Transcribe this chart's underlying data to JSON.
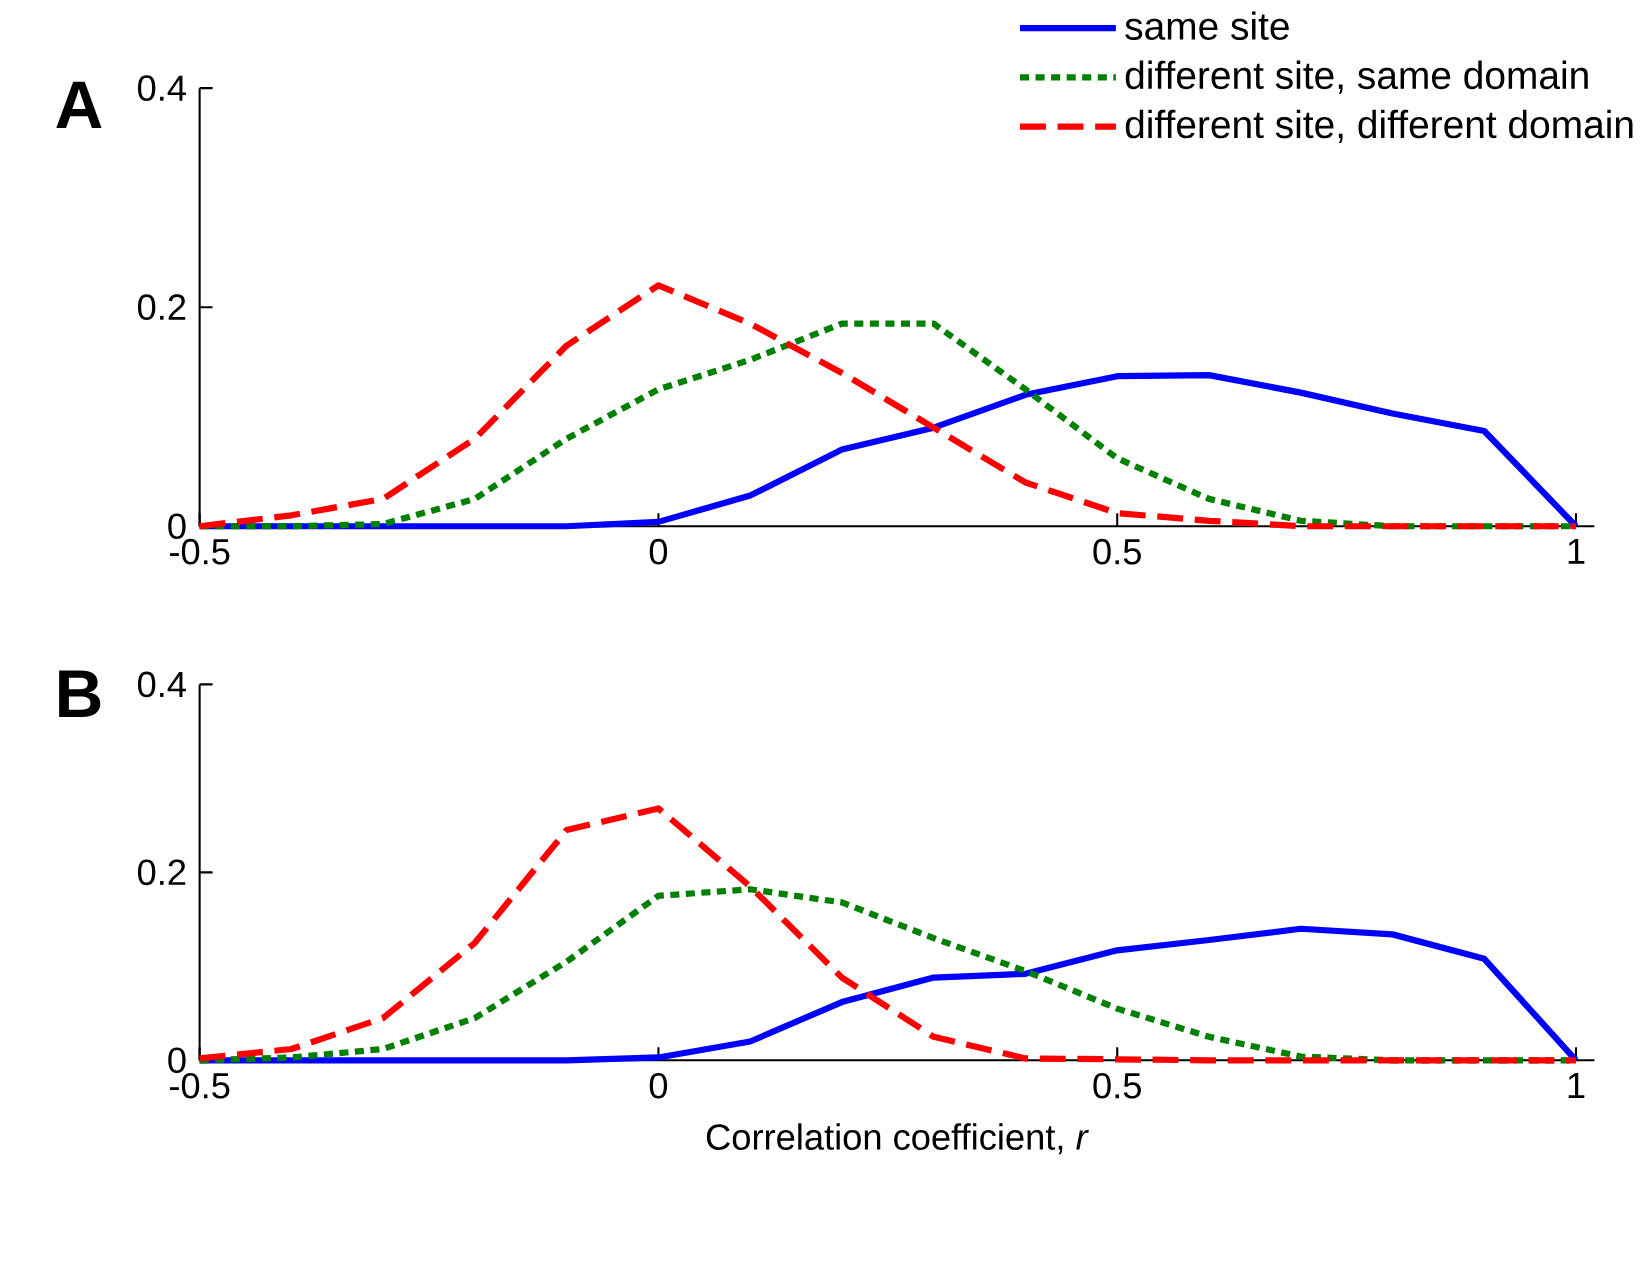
{
  "chart_data": [
    {
      "type": "line",
      "title": "A",
      "x": [
        -0.5,
        -0.4,
        -0.3,
        -0.2,
        -0.1,
        0,
        0.1,
        0.2,
        0.3,
        0.4,
        0.5,
        0.6,
        0.7,
        0.8,
        0.9,
        1.0
      ],
      "xlim": [
        -0.5,
        1.02
      ],
      "xticks": [
        -0.5,
        0,
        0.5,
        1
      ],
      "ylim": [
        0,
        0.4
      ],
      "yticks": [
        0,
        0.2,
        0.4
      ],
      "legend": "top",
      "series": [
        {
          "name": "same  site",
          "color": "#0000ff",
          "line_style": "solid",
          "values": [
            0,
            0,
            0,
            0,
            0,
            0.004,
            0.028,
            0.07,
            0.09,
            0.12,
            0.137,
            0.138,
            0.122,
            0.103,
            0.087,
            0
          ]
        },
        {
          "name": "different  site,  same  domain",
          "color": "#008000",
          "line_style": "dotted",
          "values": [
            0,
            0,
            0.002,
            0.025,
            0.08,
            0.125,
            0.152,
            0.185,
            0.185,
            0.125,
            0.062,
            0.025,
            0.005,
            0,
            0,
            0
          ]
        },
        {
          "name": "different  site,  different  domain",
          "color": "#ff0000",
          "line_style": "dashed",
          "values": [
            0,
            0.01,
            0.025,
            0.08,
            0.165,
            0.22,
            0.185,
            0.14,
            0.09,
            0.04,
            0.012,
            0.005,
            0,
            0,
            0,
            0
          ]
        }
      ]
    },
    {
      "type": "line",
      "title": "B",
      "xlabel": "Correlation  coefficient,  *r*",
      "x": [
        -0.5,
        -0.4,
        -0.3,
        -0.2,
        -0.1,
        0,
        0.1,
        0.2,
        0.3,
        0.4,
        0.5,
        0.6,
        0.7,
        0.8,
        0.9,
        1.0
      ],
      "xlim": [
        -0.5,
        1.02
      ],
      "xticks": [
        -0.5,
        0,
        0.5,
        1
      ],
      "ylim": [
        0,
        0.4
      ],
      "yticks": [
        0,
        0.2,
        0.4
      ],
      "series": [
        {
          "color": "#0000ff",
          "line_style": "solid",
          "values": [
            0,
            0,
            0,
            0,
            0,
            0.003,
            0.02,
            0.062,
            0.088,
            0.092,
            0.117,
            0.128,
            0.14,
            0.134,
            0.108,
            0
          ]
        },
        {
          "color": "#008000",
          "line_style": "dotted",
          "values": [
            0,
            0.003,
            0.012,
            0.045,
            0.105,
            0.175,
            0.182,
            0.168,
            0.13,
            0.095,
            0.055,
            0.025,
            0.004,
            0,
            0,
            0
          ]
        },
        {
          "color": "#ff0000",
          "line_style": "dashed",
          "values": [
            0.002,
            0.012,
            0.045,
            0.125,
            0.245,
            0.268,
            0.185,
            0.088,
            0.025,
            0.002,
            0.001,
            0,
            0,
            0,
            0,
            0
          ]
        }
      ]
    }
  ]
}
